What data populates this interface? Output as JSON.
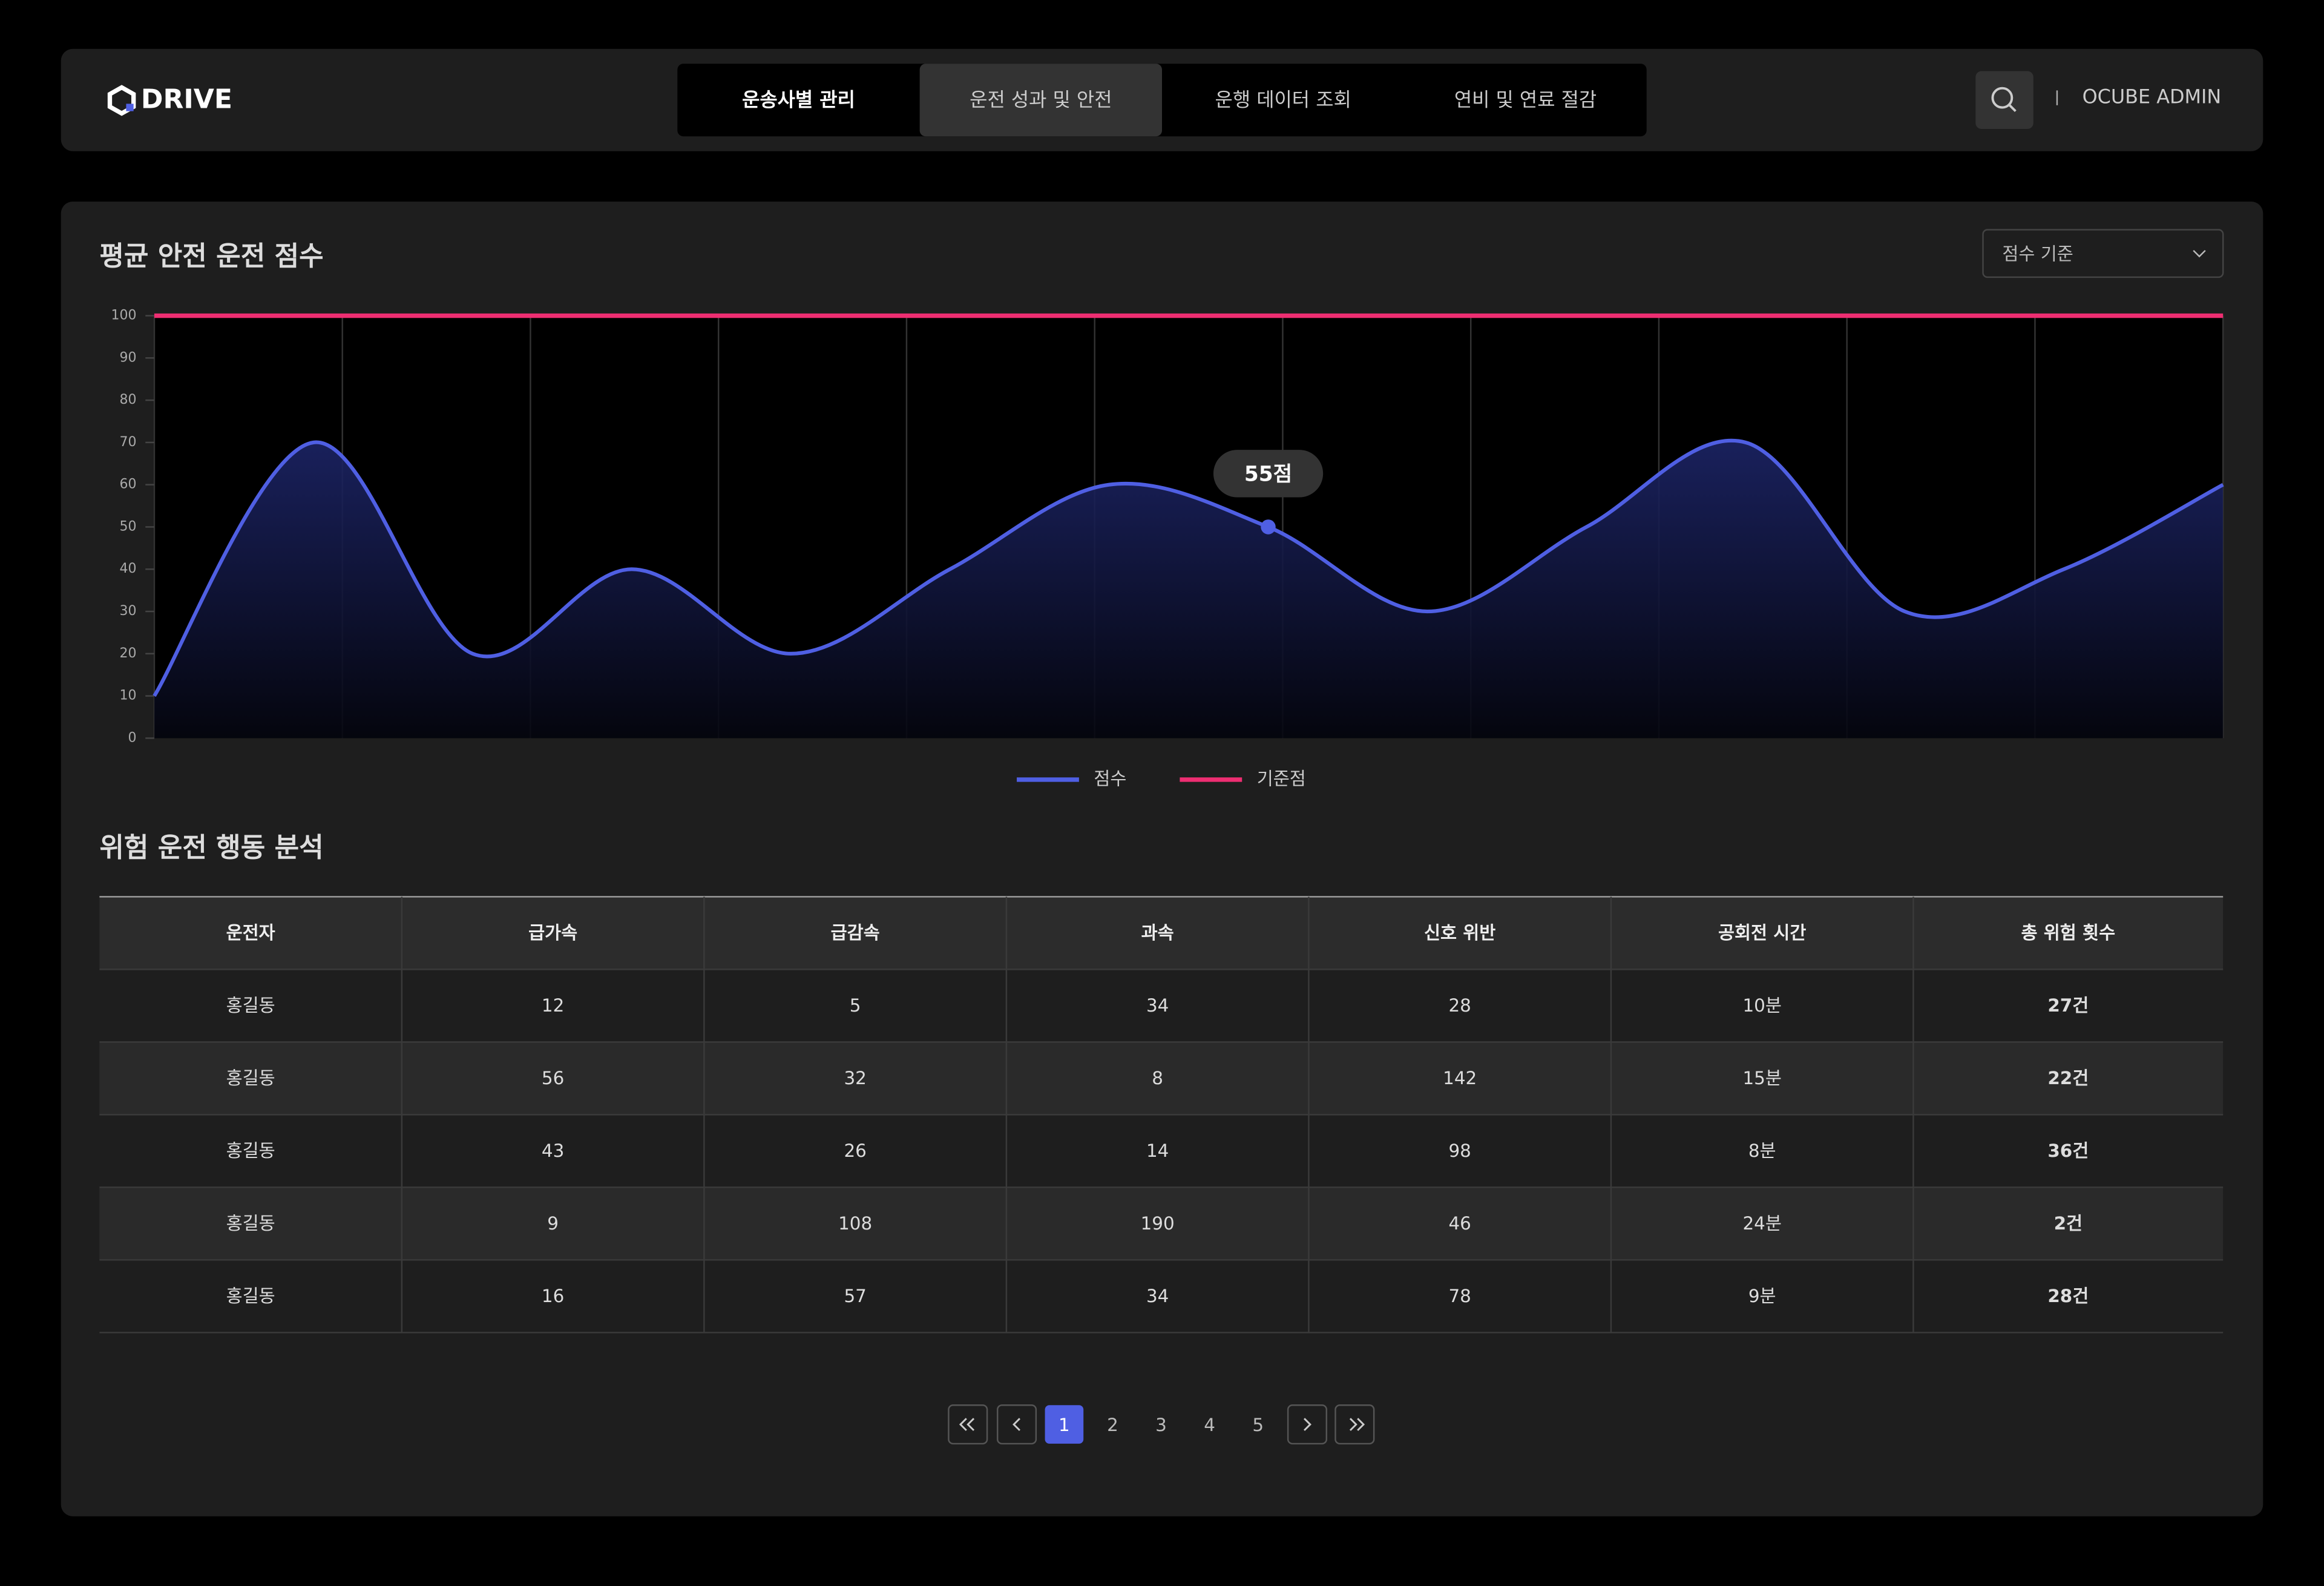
{
  "header": {
    "logo": "DRIVE",
    "tabs": [
      "운송사별 관리",
      "운전 성과 및 안전",
      "운행 데이터 조회",
      "연비 및 연료 절감"
    ],
    "active_tab": 1,
    "user": "OCUBE ADMIN"
  },
  "controls": {
    "dropdown": "점수 기준"
  },
  "chart_data": {
    "type": "line",
    "title": "평균 안전 운전 점수",
    "categories": [
      null,
      null,
      null,
      null,
      null,
      null,
      null,
      null,
      null,
      null,
      null,
      null,
      null,
      null
    ],
    "series": [
      {
        "name": "점수",
        "color": "#4f5fe3",
        "values": [
          10,
          70,
          20,
          40,
          20,
          40,
          60,
          50,
          30,
          50,
          70,
          30,
          40,
          60
        ]
      },
      {
        "name": "기준점",
        "color": "#ee2e72",
        "values": [
          100,
          100,
          100,
          100,
          100,
          100,
          100,
          100,
          100,
          100,
          100,
          100,
          100,
          100
        ]
      }
    ],
    "ylim": [
      0,
      100
    ],
    "yticks": [
      0,
      10,
      20,
      30,
      40,
      50,
      60,
      70,
      80,
      90,
      100
    ],
    "tooltip": "55점"
  },
  "table": {
    "title": "위험 운전 행동 분석",
    "columns": [
      "운전자",
      "급가속",
      "급감속",
      "과속",
      "신호 위반",
      "공회전 시간",
      "총 위험 횟수"
    ],
    "rows": [
      [
        "홍길동",
        12,
        5,
        34,
        28,
        "10분",
        "27건"
      ],
      [
        "홍길동",
        56,
        32,
        8,
        142,
        "15분",
        "22건"
      ],
      [
        "홍길동",
        43,
        26,
        14,
        98,
        "8분",
        "36건"
      ],
      [
        "홍길동",
        9,
        108,
        190,
        46,
        "24분",
        "2건"
      ],
      [
        "홍길동",
        16,
        57,
        34,
        78,
        "9분",
        "28건"
      ]
    ]
  },
  "pagination": {
    "pages": [
      1,
      2,
      3,
      4,
      5
    ],
    "current": 1
  }
}
